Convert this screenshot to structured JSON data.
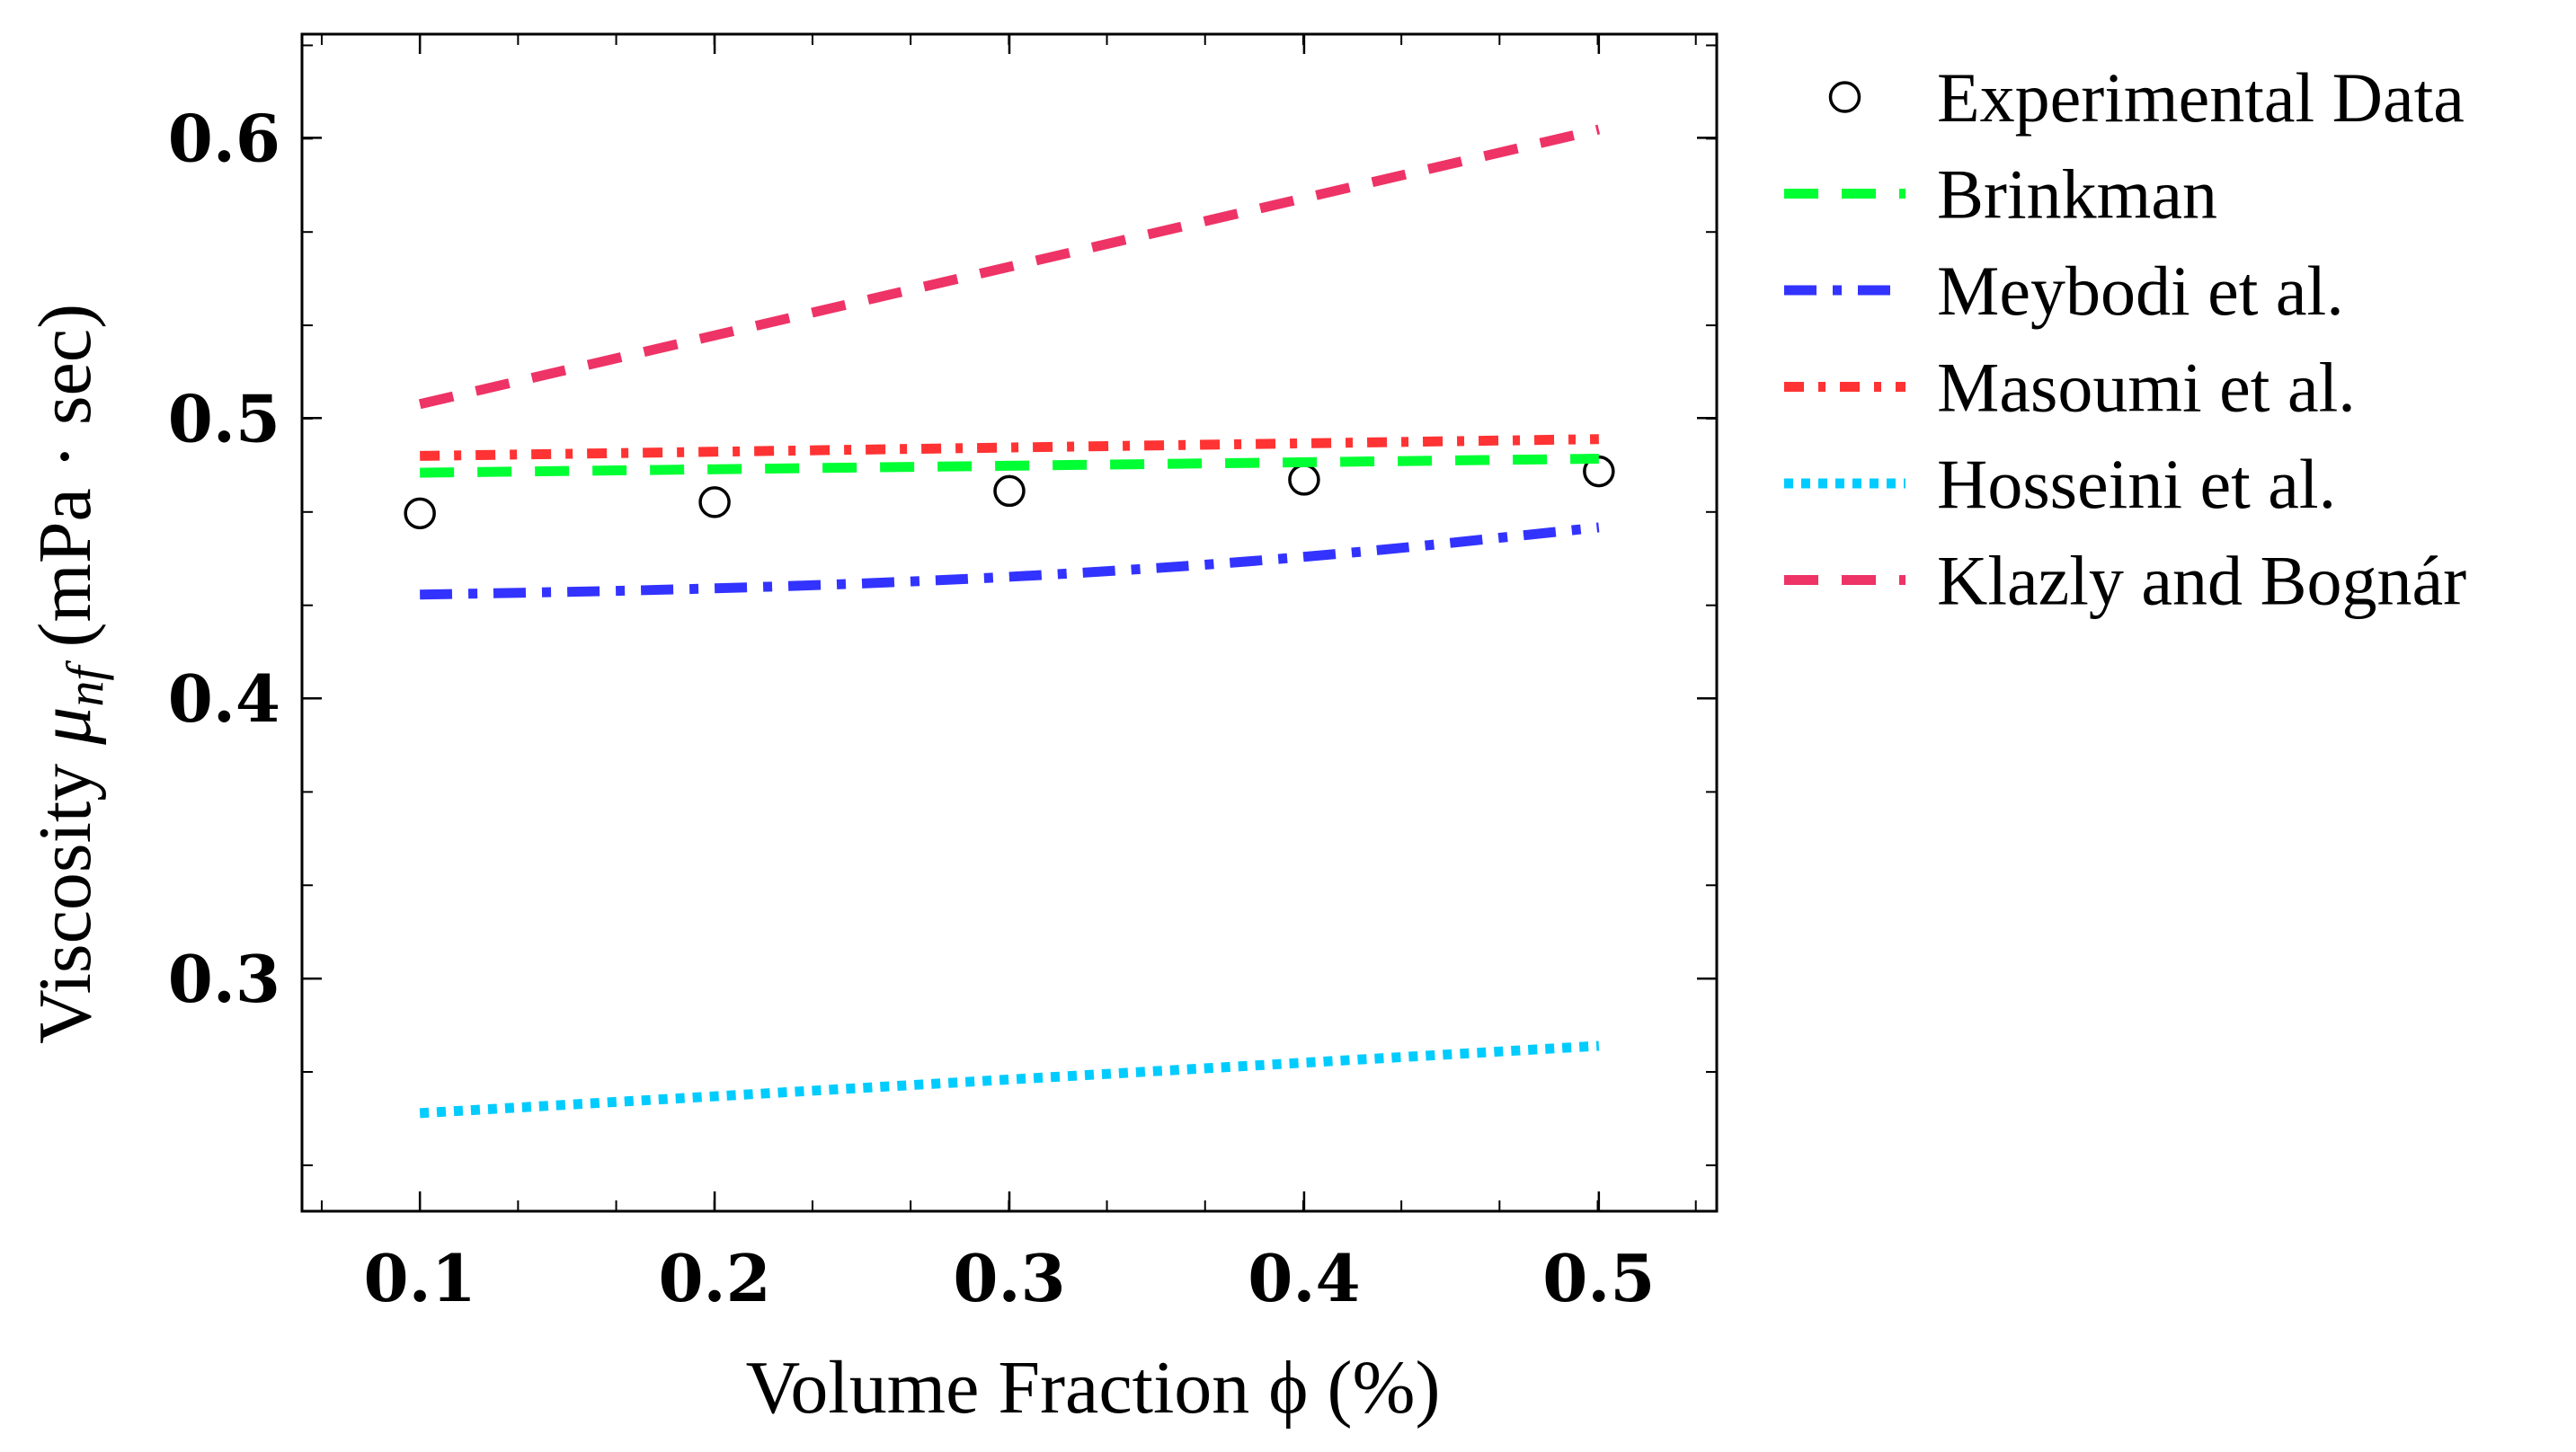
{
  "chart_data": {
    "type": "line",
    "xlabel": "Volume Fraction ϕ (%)",
    "ylabel_main": "Viscosity ",
    "ylabel_mu": "μ",
    "ylabel_sub": "nf",
    "ylabel_units": " (mPa · sec)",
    "xlim": [
      0.06,
      0.54
    ],
    "ylim": [
      0.217,
      0.637
    ],
    "xticks": [
      {
        "value": 0.1,
        "label": "0.1"
      },
      {
        "value": 0.2,
        "label": "0.2"
      },
      {
        "value": 0.3,
        "label": "0.3"
      },
      {
        "value": 0.4,
        "label": "0.4"
      },
      {
        "value": 0.5,
        "label": "0.5"
      }
    ],
    "yticks": [
      {
        "value": 0.3,
        "label": "0.3"
      },
      {
        "value": 0.4,
        "label": "0.4"
      },
      {
        "value": 0.5,
        "label": "0.5"
      },
      {
        "value": 0.6,
        "label": "0.6"
      }
    ],
    "x_minor_step": 0.0333,
    "y_minor_step": 0.0333,
    "legend_position": "outside-right",
    "grid": false,
    "series": [
      {
        "name": "Experimental Data",
        "kind": "markers",
        "color": "#000000",
        "points": [
          [
            0.1,
            0.466
          ],
          [
            0.2,
            0.47
          ],
          [
            0.3,
            0.474
          ],
          [
            0.4,
            0.478
          ],
          [
            0.5,
            0.481
          ]
        ]
      },
      {
        "name": "Brinkman",
        "kind": "dashed",
        "color": "#00ff33",
        "points": [
          [
            0.1,
            0.4805
          ],
          [
            0.5,
            0.4855
          ]
        ]
      },
      {
        "name": "Meybodi et al.",
        "kind": "dashdot",
        "color": "#3333ff",
        "points": [
          [
            0.1,
            0.437
          ],
          [
            0.2,
            0.439
          ],
          [
            0.3,
            0.443
          ],
          [
            0.4,
            0.45
          ],
          [
            0.5,
            0.461
          ]
        ]
      },
      {
        "name": "Masoumi et al.",
        "kind": "densedashdot",
        "color": "#ff3333",
        "points": [
          [
            0.1,
            0.4865
          ],
          [
            0.5,
            0.4925
          ]
        ]
      },
      {
        "name": "Hosseini et al.",
        "kind": "dotted",
        "color": "#00ccff",
        "points": [
          [
            0.1,
            0.252
          ],
          [
            0.2,
            0.258
          ],
          [
            0.3,
            0.264
          ],
          [
            0.4,
            0.27
          ],
          [
            0.5,
            0.276
          ]
        ]
      },
      {
        "name": "Klazly and Bognár",
        "kind": "dashed",
        "color": "#ee3366",
        "points": [
          [
            0.1,
            0.505
          ],
          [
            0.5,
            0.603
          ]
        ]
      }
    ]
  }
}
